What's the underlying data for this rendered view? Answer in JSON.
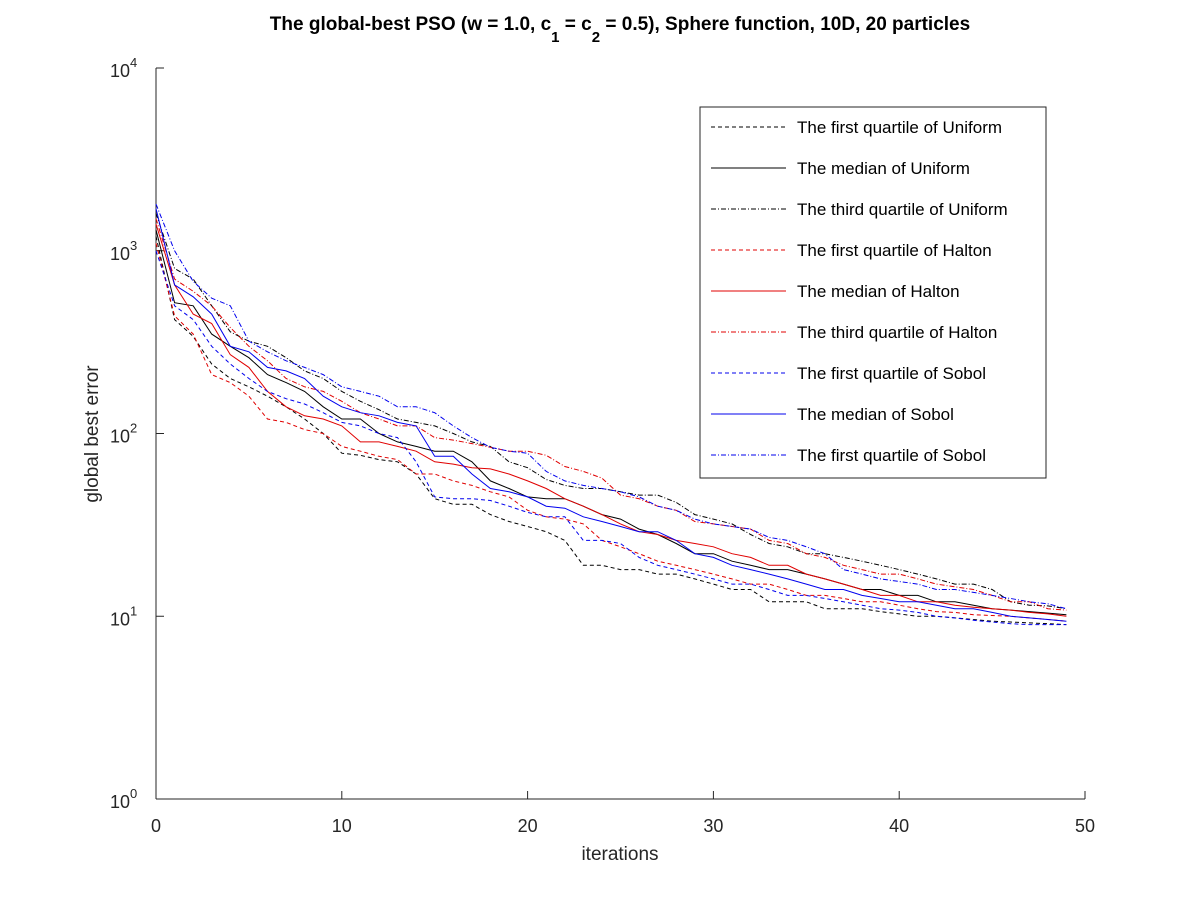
{
  "chart_data": {
    "type": "line",
    "title": {
      "part1": "The global-best PSO (w = 1.0, c",
      "sub1": "1",
      "part2": " = c",
      "sub2": "2",
      "part3": " = 0.5), Sphere function, 10D, 20 particles"
    },
    "xlabel": "iterations",
    "ylabel": "global best error",
    "xlim": [
      0,
      50
    ],
    "ylim": [
      1,
      10000
    ],
    "yscale": "log",
    "grid": false,
    "legend_position": "top-right",
    "x_ticks": [
      {
        "value": 0,
        "label": "0"
      },
      {
        "value": 10,
        "label": "10"
      },
      {
        "value": 20,
        "label": "20"
      },
      {
        "value": 30,
        "label": "30"
      },
      {
        "value": 40,
        "label": "40"
      },
      {
        "value": 50,
        "label": "50"
      }
    ],
    "y_ticks": [
      {
        "value": 1,
        "base": "10",
        "exp": "0"
      },
      {
        "value": 10,
        "base": "10",
        "exp": "1"
      },
      {
        "value": 100,
        "base": "10",
        "exp": "2"
      },
      {
        "value": 1000,
        "base": "10",
        "exp": "3"
      },
      {
        "value": 10000,
        "base": "10",
        "exp": "4"
      }
    ],
    "x": [
      0,
      1,
      2,
      3,
      4,
      5,
      6,
      7,
      8,
      9,
      10,
      11,
      12,
      13,
      14,
      15,
      16,
      17,
      18,
      19,
      20,
      21,
      22,
      23,
      24,
      25,
      26,
      27,
      28,
      29,
      30,
      31,
      32,
      33,
      34,
      35,
      36,
      37,
      38,
      39,
      40,
      41,
      42,
      43,
      44,
      45,
      46,
      47,
      48,
      49
    ],
    "series": [
      {
        "name": "The first quartile of Uniform",
        "color": "#000000",
        "style": "dashed",
        "values": [
          1200,
          420,
          340,
          240,
          200,
          180,
          160,
          140,
          120,
          100,
          78,
          76,
          72,
          70,
          60,
          44,
          41,
          41,
          36,
          33,
          31,
          29,
          26,
          19,
          19,
          18,
          18,
          17,
          17,
          16,
          15,
          14,
          14,
          12,
          12,
          12,
          11,
          11,
          11,
          10.6,
          10.3,
          10.0,
          10.0,
          9.8,
          9.6,
          9.4,
          9.3,
          9.2,
          9.1,
          9.0
        ]
      },
      {
        "name": "The median of Uniform",
        "color": "#000000",
        "style": "solid",
        "values": [
          1300,
          520,
          500,
          350,
          300,
          260,
          210,
          190,
          170,
          140,
          120,
          120,
          100,
          90,
          85,
          80,
          80,
          70,
          55,
          50,
          45,
          44,
          44,
          40,
          36,
          34,
          30,
          28,
          25,
          22,
          22,
          20,
          19,
          18,
          18,
          17,
          16,
          15,
          14,
          14,
          13,
          13,
          12,
          12,
          11.5,
          11,
          10.8,
          10.6,
          10.4,
          10.2
        ]
      },
      {
        "name": "The third quartile of Uniform",
        "color": "#000000",
        "style": "dashdot",
        "values": [
          1600,
          800,
          700,
          500,
          360,
          320,
          300,
          260,
          220,
          200,
          170,
          150,
          135,
          120,
          115,
          110,
          100,
          90,
          85,
          70,
          65,
          56,
          52,
          50,
          50,
          48,
          46,
          46,
          42,
          36,
          34,
          32,
          28,
          25,
          24,
          22,
          22,
          21,
          20,
          19,
          18,
          17,
          16,
          15,
          15,
          14,
          12,
          11.5,
          11.4,
          11
        ]
      },
      {
        "name": "The first quartile of Halton",
        "color": "#e00000",
        "style": "dashed",
        "values": [
          1100,
          440,
          350,
          210,
          190,
          160,
          120,
          115,
          105,
          100,
          85,
          80,
          75,
          72,
          60,
          60,
          55,
          52,
          48,
          45,
          38,
          35,
          34,
          32,
          26,
          24,
          22,
          20,
          19,
          18,
          17,
          16,
          15,
          15,
          14,
          13,
          13,
          12.5,
          12,
          12,
          11.5,
          11,
          10.6,
          10.5,
          10.2,
          10.1,
          10,
          9.8,
          9.6,
          9.4
        ]
      },
      {
        "name": "The median of Halton",
        "color": "#e00000",
        "style": "solid",
        "values": [
          1400,
          650,
          450,
          400,
          270,
          230,
          170,
          140,
          125,
          120,
          110,
          90,
          90,
          85,
          80,
          70,
          68,
          65,
          64,
          60,
          55,
          50,
          44,
          40,
          36,
          32,
          29,
          28,
          26,
          25,
          24,
          22,
          21,
          19,
          19,
          17,
          16,
          15,
          14,
          13,
          13,
          12,
          12,
          11.5,
          11.2,
          11,
          10.8,
          10.5,
          10.3,
          10
        ]
      },
      {
        "name": "The third quartile of Halton",
        "color": "#e00000",
        "style": "dashdot",
        "values": [
          1500,
          700,
          600,
          500,
          380,
          300,
          250,
          200,
          180,
          170,
          150,
          130,
          120,
          110,
          110,
          95,
          92,
          88,
          84,
          80,
          80,
          76,
          66,
          62,
          57,
          46,
          44,
          40,
          38,
          33,
          32,
          31,
          30,
          26,
          25,
          22,
          21,
          19,
          18,
          17,
          17,
          16,
          15,
          14.5,
          14,
          13,
          12,
          12,
          11,
          10.8
        ]
      },
      {
        "name": "The first quartile of Sobol",
        "color": "#0000ee",
        "style": "dashed",
        "values": [
          1000,
          500,
          420,
          300,
          240,
          200,
          170,
          155,
          145,
          130,
          115,
          110,
          100,
          95,
          70,
          45,
          44,
          44,
          43,
          40,
          37,
          35,
          35,
          26,
          26,
          25,
          21,
          19,
          18,
          17,
          16,
          15,
          15,
          14,
          13,
          13,
          12.5,
          12,
          11.5,
          11,
          10.8,
          10.5,
          10,
          9.8,
          9.5,
          9.3,
          9.1,
          9.0,
          9.0,
          9.0
        ]
      },
      {
        "name": "The median of Sobol",
        "color": "#0000ee",
        "style": "solid",
        "values": [
          1700,
          650,
          560,
          450,
          300,
          280,
          230,
          220,
          200,
          160,
          140,
          130,
          125,
          115,
          110,
          75,
          75,
          60,
          50,
          48,
          45,
          40,
          39,
          35,
          33,
          31,
          29,
          29,
          26,
          22,
          21,
          19,
          18,
          17,
          16,
          15,
          14,
          14,
          13,
          12.5,
          12,
          12,
          11.5,
          11,
          11,
          10.5,
          10,
          9.8,
          9.6,
          9.4
        ]
      },
      {
        "name": "The first quartile of Sobol",
        "color": "#0000ee",
        "style": "dashdot",
        "values": [
          1800,
          1000,
          680,
          550,
          500,
          320,
          280,
          250,
          230,
          210,
          180,
          170,
          160,
          140,
          140,
          130,
          110,
          95,
          84,
          80,
          78,
          62,
          55,
          52,
          50,
          48,
          45,
          40,
          38,
          34,
          32,
          31,
          30,
          27,
          26,
          24,
          22,
          18,
          17,
          16,
          15.5,
          15,
          14,
          14,
          13.5,
          13,
          12.5,
          12,
          11.7,
          11
        ]
      }
    ]
  }
}
